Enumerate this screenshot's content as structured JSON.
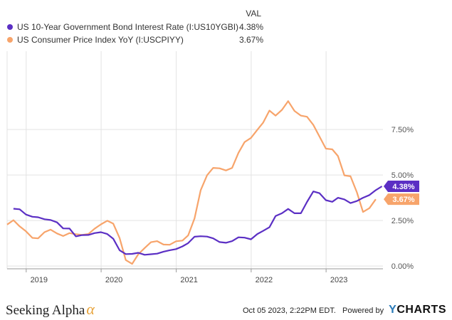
{
  "legend": {
    "header": "VAL",
    "series": [
      {
        "name": "US 10-Year Government Bond Interest Rate (I:US10YGBI)",
        "value": "4.38%",
        "color": "#5b2fc4"
      },
      {
        "name": "US Consumer Price Index YoY (I:USCPIYY)",
        "value": "3.67%",
        "color": "#f7a46b"
      }
    ]
  },
  "footer": {
    "brand": "Seeking Alpha",
    "brand_symbol": "α",
    "timestamp": "Oct 05 2023, 2:22PM EDT.",
    "powered_by": "Powered by",
    "ycharts_y": "Y",
    "ycharts_rest": "CHARTS"
  },
  "chart_data": {
    "type": "line",
    "x_tick_labels": [
      "2019",
      "2020",
      "2021",
      "2022",
      "2023"
    ],
    "y_tick_labels": [
      "0.00%",
      "2.50%",
      "5.00%",
      "7.50%"
    ],
    "y_ticks": [
      0,
      2.5,
      5,
      7.5
    ],
    "ylim": [
      -0.15,
      11.8
    ],
    "xlim": [
      "2018-09-30",
      "2023-10-05"
    ],
    "grid": true,
    "series": [
      {
        "name": "US 10-Year Government Bond Interest Rate (I:US10YGBI)",
        "color": "#5b2fc4",
        "end_label": "4.38%",
        "points": [
          [
            "2018-10-31",
            3.15
          ],
          [
            "2018-11-30",
            3.12
          ],
          [
            "2018-12-31",
            2.83
          ],
          [
            "2019-01-31",
            2.71
          ],
          [
            "2019-02-28",
            2.68
          ],
          [
            "2019-03-31",
            2.57
          ],
          [
            "2019-04-30",
            2.53
          ],
          [
            "2019-05-31",
            2.4
          ],
          [
            "2019-06-30",
            2.07
          ],
          [
            "2019-07-31",
            2.06
          ],
          [
            "2019-08-31",
            1.63
          ],
          [
            "2019-09-30",
            1.7
          ],
          [
            "2019-10-31",
            1.71
          ],
          [
            "2019-11-30",
            1.81
          ],
          [
            "2019-12-31",
            1.86
          ],
          [
            "2020-01-31",
            1.76
          ],
          [
            "2020-02-29",
            1.5
          ],
          [
            "2020-03-31",
            0.87
          ],
          [
            "2020-04-30",
            0.66
          ],
          [
            "2020-05-31",
            0.67
          ],
          [
            "2020-06-30",
            0.73
          ],
          [
            "2020-07-31",
            0.62
          ],
          [
            "2020-08-31",
            0.65
          ],
          [
            "2020-09-30",
            0.68
          ],
          [
            "2020-10-31",
            0.79
          ],
          [
            "2020-11-30",
            0.87
          ],
          [
            "2020-12-31",
            0.93
          ],
          [
            "2021-01-31",
            1.08
          ],
          [
            "2021-02-28",
            1.26
          ],
          [
            "2021-03-31",
            1.61
          ],
          [
            "2021-04-30",
            1.64
          ],
          [
            "2021-05-31",
            1.62
          ],
          [
            "2021-06-30",
            1.52
          ],
          [
            "2021-07-31",
            1.32
          ],
          [
            "2021-08-31",
            1.28
          ],
          [
            "2021-09-30",
            1.37
          ],
          [
            "2021-10-31",
            1.58
          ],
          [
            "2021-11-30",
            1.56
          ],
          [
            "2021-12-31",
            1.47
          ],
          [
            "2022-01-31",
            1.76
          ],
          [
            "2022-02-28",
            1.93
          ],
          [
            "2022-03-31",
            2.13
          ],
          [
            "2022-04-30",
            2.75
          ],
          [
            "2022-05-31",
            2.9
          ],
          [
            "2022-06-30",
            3.14
          ],
          [
            "2022-07-31",
            2.9
          ],
          [
            "2022-08-31",
            2.9
          ],
          [
            "2022-09-30",
            3.52
          ],
          [
            "2022-10-31",
            4.1
          ],
          [
            "2022-11-30",
            4.0
          ],
          [
            "2022-12-31",
            3.62
          ],
          [
            "2023-01-31",
            3.53
          ],
          [
            "2023-02-28",
            3.75
          ],
          [
            "2023-03-31",
            3.66
          ],
          [
            "2023-04-30",
            3.46
          ],
          [
            "2023-05-31",
            3.57
          ],
          [
            "2023-06-30",
            3.75
          ],
          [
            "2023-07-31",
            3.9
          ],
          [
            "2023-08-31",
            4.17
          ],
          [
            "2023-09-30",
            4.38
          ]
        ]
      },
      {
        "name": "US Consumer Price Index YoY (I:USCPIYY)",
        "color": "#f7a46b",
        "end_label": "3.67%",
        "points": [
          [
            "2018-09-30",
            2.28
          ],
          [
            "2018-10-31",
            2.52
          ],
          [
            "2018-11-30",
            2.18
          ],
          [
            "2018-12-31",
            1.91
          ],
          [
            "2019-01-31",
            1.55
          ],
          [
            "2019-02-28",
            1.52
          ],
          [
            "2019-03-31",
            1.86
          ],
          [
            "2019-04-30",
            2.0
          ],
          [
            "2019-05-31",
            1.79
          ],
          [
            "2019-06-30",
            1.65
          ],
          [
            "2019-07-31",
            1.81
          ],
          [
            "2019-08-31",
            1.75
          ],
          [
            "2019-09-30",
            1.71
          ],
          [
            "2019-10-31",
            1.76
          ],
          [
            "2019-11-30",
            2.05
          ],
          [
            "2019-12-31",
            2.29
          ],
          [
            "2020-01-31",
            2.49
          ],
          [
            "2020-02-29",
            2.33
          ],
          [
            "2020-03-31",
            1.54
          ],
          [
            "2020-04-30",
            0.33
          ],
          [
            "2020-05-31",
            0.12
          ],
          [
            "2020-06-30",
            0.65
          ],
          [
            "2020-07-31",
            0.99
          ],
          [
            "2020-08-31",
            1.31
          ],
          [
            "2020-09-30",
            1.37
          ],
          [
            "2020-10-31",
            1.18
          ],
          [
            "2020-11-30",
            1.17
          ],
          [
            "2020-12-31",
            1.36
          ],
          [
            "2021-01-31",
            1.4
          ],
          [
            "2021-02-28",
            1.68
          ],
          [
            "2021-03-31",
            2.62
          ],
          [
            "2021-04-30",
            4.16
          ],
          [
            "2021-05-31",
            4.99
          ],
          [
            "2021-06-30",
            5.39
          ],
          [
            "2021-07-31",
            5.37
          ],
          [
            "2021-08-31",
            5.25
          ],
          [
            "2021-09-30",
            5.39
          ],
          [
            "2021-10-31",
            6.22
          ],
          [
            "2021-11-30",
            6.81
          ],
          [
            "2021-12-31",
            7.04
          ],
          [
            "2022-01-31",
            7.48
          ],
          [
            "2022-02-28",
            7.87
          ],
          [
            "2022-03-31",
            8.54
          ],
          [
            "2022-04-30",
            8.26
          ],
          [
            "2022-05-31",
            8.58
          ],
          [
            "2022-06-30",
            9.06
          ],
          [
            "2022-07-31",
            8.52
          ],
          [
            "2022-08-31",
            8.26
          ],
          [
            "2022-09-30",
            8.2
          ],
          [
            "2022-10-31",
            7.75
          ],
          [
            "2022-11-30",
            7.11
          ],
          [
            "2022-12-31",
            6.45
          ],
          [
            "2023-01-31",
            6.41
          ],
          [
            "2023-02-28",
            6.04
          ],
          [
            "2023-03-31",
            4.98
          ],
          [
            "2023-04-30",
            4.93
          ],
          [
            "2023-05-31",
            4.05
          ],
          [
            "2023-06-30",
            2.97
          ],
          [
            "2023-07-31",
            3.18
          ],
          [
            "2023-08-31",
            3.67
          ]
        ]
      }
    ]
  }
}
